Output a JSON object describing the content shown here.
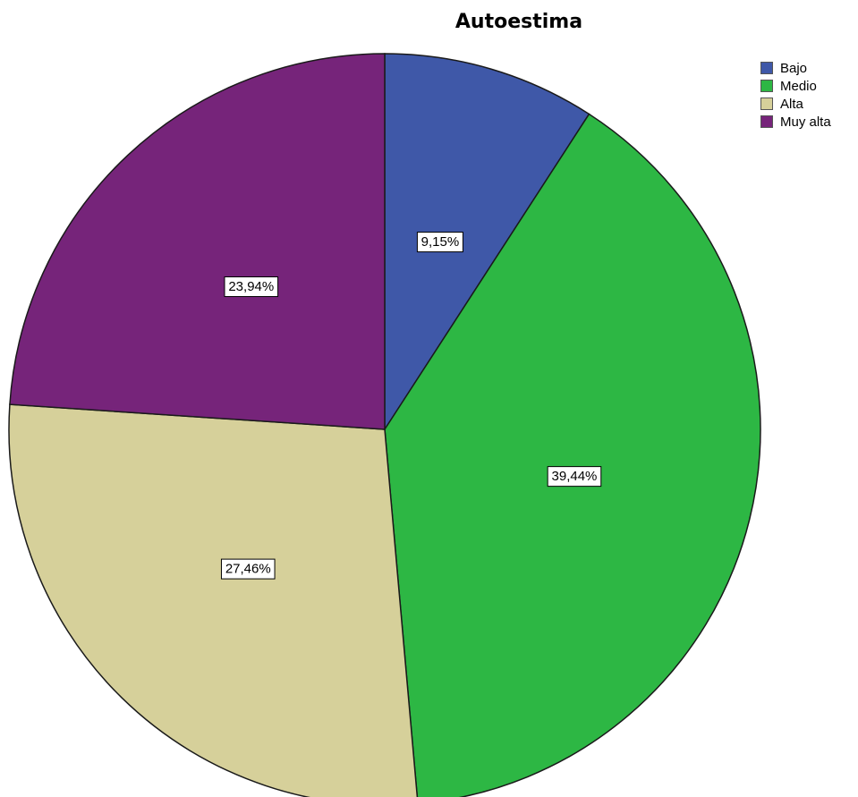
{
  "chart_data": {
    "type": "pie",
    "title": "Autoestima",
    "categories": [
      "Bajo",
      "Medio",
      "Alta",
      "Muy alta"
    ],
    "values": [
      9.15,
      39.44,
      27.46,
      23.94
    ],
    "labels": [
      "9,15%",
      "39,44%",
      "27,46%",
      "23,94%"
    ],
    "colors": [
      "#3f58a8",
      "#2db744",
      "#d6d09a",
      "#76247a"
    ],
    "legend_position": "top-right"
  }
}
